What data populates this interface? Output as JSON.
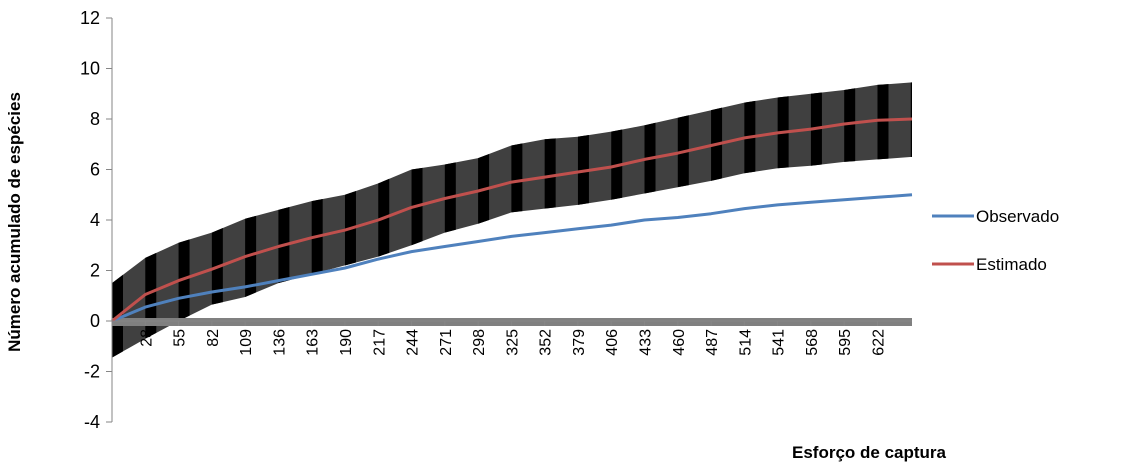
{
  "chart_data": {
    "type": "line",
    "title": "",
    "xlabel": "Esforço de captura",
    "ylabel": "Número acumulado de espécies",
    "xlim": [
      1,
      650
    ],
    "ylim": [
      -4,
      12
    ],
    "y_ticks": [
      -4,
      -2,
      0,
      2,
      4,
      6,
      8,
      10,
      12
    ],
    "x_tick_labels": [
      "28",
      "55",
      "82",
      "109",
      "136",
      "163",
      "190",
      "217",
      "244",
      "271",
      "298",
      "325",
      "352",
      "379",
      "406",
      "433",
      "460",
      "487",
      "514",
      "541",
      "568",
      "595",
      "622"
    ],
    "grid": false,
    "legend": "right",
    "series": [
      {
        "name": "Observado",
        "color": "#4f81bd",
        "x": [
          1,
          28,
          55,
          82,
          109,
          136,
          163,
          190,
          217,
          244,
          271,
          298,
          325,
          352,
          379,
          406,
          433,
          460,
          487,
          514,
          541,
          568,
          595,
          622,
          650
        ],
        "values": [
          0.0,
          0.55,
          0.9,
          1.15,
          1.35,
          1.6,
          1.85,
          2.1,
          2.45,
          2.75,
          2.95,
          3.15,
          3.35,
          3.5,
          3.65,
          3.8,
          4.0,
          4.1,
          4.25,
          4.45,
          4.6,
          4.7,
          4.8,
          4.9,
          5.0
        ]
      },
      {
        "name": "Estimado",
        "color": "#c0504d",
        "x": [
          1,
          28,
          55,
          82,
          109,
          136,
          163,
          190,
          217,
          244,
          271,
          298,
          325,
          352,
          379,
          406,
          433,
          460,
          487,
          514,
          541,
          568,
          595,
          622,
          650
        ],
        "values": [
          0.0,
          1.05,
          1.6,
          2.05,
          2.55,
          2.95,
          3.3,
          3.6,
          4.0,
          4.5,
          4.85,
          5.15,
          5.5,
          5.7,
          5.9,
          6.1,
          6.4,
          6.65,
          6.95,
          7.25,
          7.45,
          7.6,
          7.8,
          7.95,
          8.0
        ],
        "error_band": {
          "color": "#404040",
          "lower": [
            -1.45,
            -0.7,
            0.0,
            0.65,
            0.95,
            1.5,
            1.85,
            2.2,
            2.55,
            3.0,
            3.5,
            3.85,
            4.3,
            4.45,
            4.6,
            4.8,
            5.05,
            5.3,
            5.55,
            5.85,
            6.05,
            6.15,
            6.3,
            6.4,
            6.5
          ],
          "upper": [
            1.5,
            2.5,
            3.1,
            3.5,
            4.05,
            4.4,
            4.75,
            5.0,
            5.45,
            6.0,
            6.2,
            6.45,
            6.95,
            7.2,
            7.3,
            7.5,
            7.75,
            8.05,
            8.35,
            8.65,
            8.85,
            9.0,
            9.15,
            9.35,
            9.45
          ]
        }
      }
    ],
    "zero_line_color": "#808080"
  }
}
